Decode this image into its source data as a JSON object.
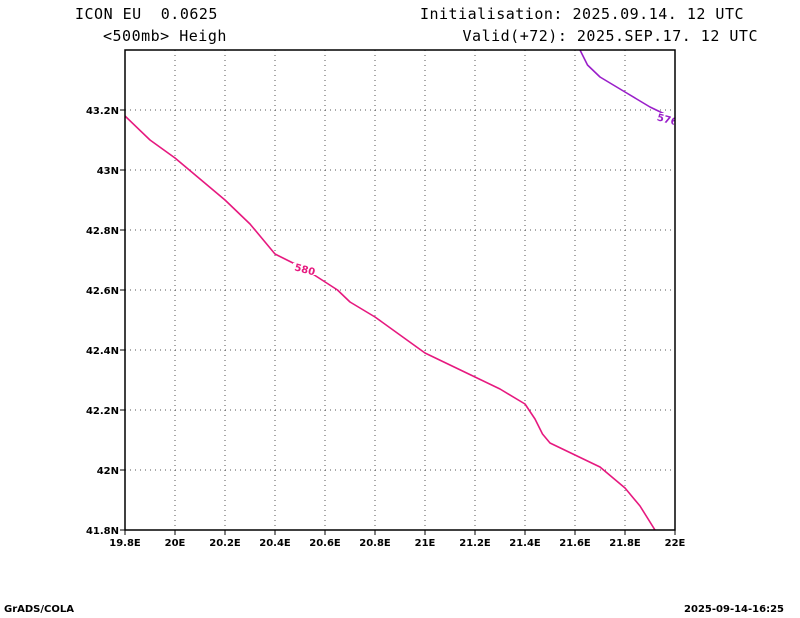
{
  "header": {
    "model": "ICON EU  0.0625",
    "variable": "<500mb> Heigh",
    "init": "Initialisation: 2025.09.14. 12 UTC",
    "valid": "Valid(+72): 2025.SEP.17. 12 UTC"
  },
  "footer": {
    "left": "GrADS/COLA",
    "right": "2025-09-14-16:25"
  },
  "chart_data": {
    "type": "line",
    "xlim": [
      19.8,
      22.0
    ],
    "ylim": [
      41.8,
      43.4
    ],
    "x_ticks": [
      19.8,
      20.0,
      20.2,
      20.4,
      20.6,
      20.8,
      21.0,
      21.2,
      21.4,
      21.6,
      21.8,
      22.0
    ],
    "x_tick_labels": [
      "19.8E",
      "20E",
      "20.2E",
      "20.4E",
      "20.6E",
      "20.8E",
      "21E",
      "21.2E",
      "21.4E",
      "21.6E",
      "21.8E",
      "22E"
    ],
    "y_ticks": [
      41.8,
      42.0,
      42.2,
      42.4,
      42.6,
      42.8,
      43.0,
      43.2
    ],
    "y_tick_labels": [
      "41.8N",
      "42N",
      "42.2N",
      "42.4N",
      "42.6N",
      "42.8N",
      "43N",
      "43.2N"
    ],
    "grid": true,
    "series": [
      {
        "name": "580",
        "color": "#e6197f",
        "label_at": [
          20.52,
          42.67
        ],
        "points": [
          [
            19.8,
            43.18
          ],
          [
            19.9,
            43.1
          ],
          [
            20.0,
            43.04
          ],
          [
            20.1,
            42.97
          ],
          [
            20.2,
            42.9
          ],
          [
            20.3,
            42.82
          ],
          [
            20.4,
            42.72
          ],
          [
            20.52,
            42.67
          ],
          [
            20.65,
            42.6
          ],
          [
            20.7,
            42.56
          ],
          [
            20.8,
            42.51
          ],
          [
            20.9,
            42.45
          ],
          [
            21.0,
            42.39
          ],
          [
            21.1,
            42.35
          ],
          [
            21.2,
            42.31
          ],
          [
            21.3,
            42.27
          ],
          [
            21.4,
            42.22
          ],
          [
            21.44,
            42.17
          ],
          [
            21.47,
            42.12
          ],
          [
            21.5,
            42.09
          ],
          [
            21.6,
            42.05
          ],
          [
            21.7,
            42.01
          ],
          [
            21.8,
            41.94
          ],
          [
            21.86,
            41.88
          ],
          [
            21.92,
            41.8
          ]
        ]
      },
      {
        "name": "576",
        "color": "#9a1fc9",
        "label_at": [
          21.97,
          43.17
        ],
        "points": [
          [
            21.62,
            43.4
          ],
          [
            21.65,
            43.35
          ],
          [
            21.7,
            43.31
          ],
          [
            21.8,
            43.26
          ],
          [
            21.9,
            43.21
          ],
          [
            22.0,
            43.17
          ]
        ]
      }
    ]
  }
}
